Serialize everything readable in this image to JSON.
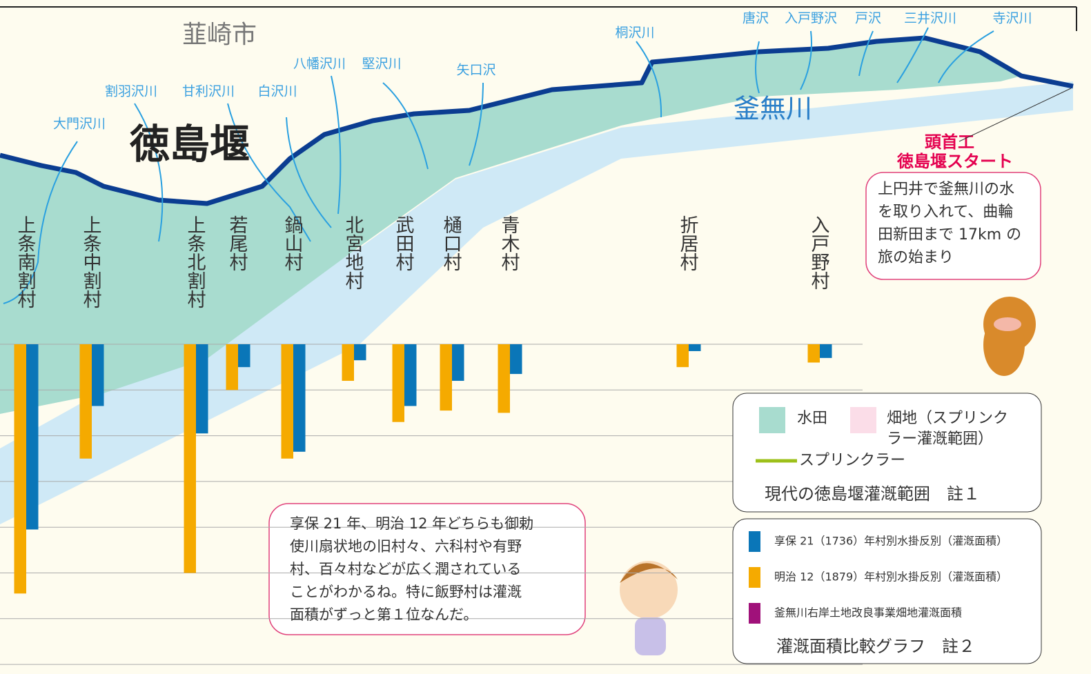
{
  "chart_data": {
    "type": "bar",
    "categories": [
      "上条南割村",
      "上条中割村",
      "上条北割村",
      "若尾村",
      "鍋山村",
      "北宮地村",
      "武田村",
      "樋口村",
      "青木村",
      "折居村",
      "入戸野村"
    ],
    "series": [
      {
        "name": "明治 12（1879）年村別水掛反別（灌漑面積）",
        "color": "#f5aa00",
        "values": [
          5.45,
          2.5,
          5.0,
          1.0,
          2.5,
          0.8,
          1.7,
          1.45,
          1.5,
          0.5,
          0.4
        ]
      },
      {
        "name": "享保 21（1736）年村別水掛反別（灌漑面積）",
        "color": "#0a76b8",
        "values": [
          4.05,
          1.35,
          1.95,
          0.5,
          2.35,
          0.35,
          1.35,
          0.8,
          0.65,
          0.15,
          0.3
        ]
      }
    ],
    "ylim": [
      0,
      7
    ],
    "yticks": [
      0,
      1,
      2,
      3,
      4,
      5,
      6,
      7
    ],
    "grid": true,
    "direction": "down"
  },
  "map": {
    "city": "韮崎市",
    "weir": "徳島堰",
    "river": "釜無川",
    "streams": [
      "大門沢川",
      "割羽沢川",
      "甘利沢川",
      "白沢川",
      "八幡沢川",
      "堅沢川",
      "矢口沢",
      "桐沢川",
      "唐沢",
      "入戸野沢",
      "戸沢",
      "三井沢川",
      "寺沢川"
    ],
    "start": [
      "頭首工",
      "徳島堰スタート"
    ]
  },
  "legend_map": {
    "paddy": "水田",
    "field": [
      "畑地（スプリンク",
      "ラー灌漑範囲）"
    ],
    "sprinkler": "スプリンクラー",
    "title": "現代の徳島堰灌漑範囲　註１"
  },
  "legend_chart": {
    "entries": [
      "享保 21（1736）年村別水掛反別（灌漑面積）",
      "明治 12（1879）年村別水掛反別（灌漑面積）",
      "釜無川右岸土地改良事業畑地灌漑面積"
    ],
    "extra_color": "#a0117a",
    "title": "灌漑面積比較グラフ　註２"
  },
  "bubbles": [
    {
      "lines": [
        "上円井で釜無川の水",
        "を取り入れて、曲輪",
        "田新田まで 17km の",
        "旅の始まり"
      ]
    },
    {
      "lines": [
        "享保 21 年、明治 12 年どちらも御勅",
        "使川扇状地の旧村々、六科村や有野",
        "村、百々村などが広く潤されている",
        "ことがわかるね。特に飯野村は灌漑",
        "面積がずっと第１位なんだ。"
      ]
    }
  ]
}
